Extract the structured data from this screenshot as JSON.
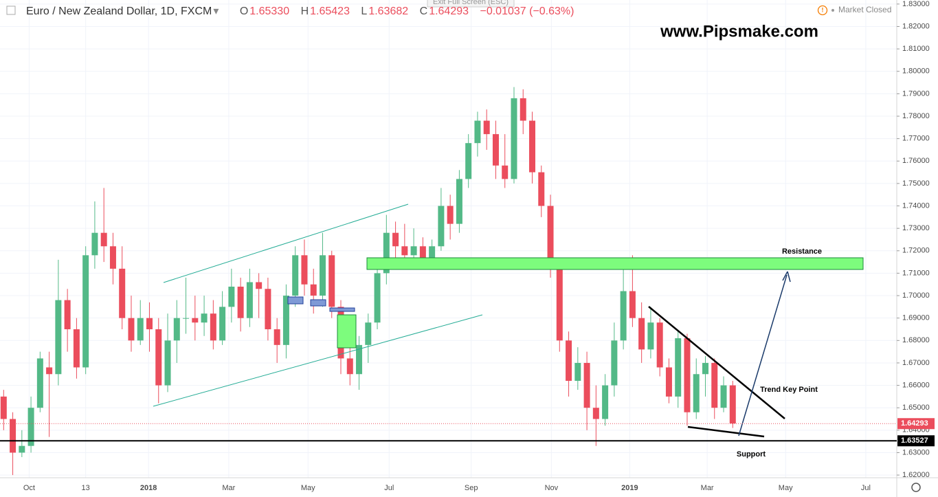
{
  "header": {
    "symbol": "Euro / New Zealand Dollar, 1D, FXCM",
    "ohlc": [
      {
        "key": "O",
        "value": "1.65330"
      },
      {
        "key": "H",
        "value": "1.65423"
      },
      {
        "key": "L",
        "value": "1.63682"
      },
      {
        "key": "C",
        "value": "1.64293"
      }
    ],
    "change": "−0.01037 (−0.63%)",
    "exit_fullscreen": "Exit Full Screen (ESC)",
    "status": "Market Closed"
  },
  "watermark": "www.Pipsmake.com",
  "chart_data": {
    "type": "candlestick",
    "x": [
      0,
      1,
      2,
      3,
      4,
      5,
      6,
      7,
      8,
      9,
      10,
      11,
      12,
      13,
      14,
      15,
      16,
      17,
      18,
      19,
      20,
      21,
      22,
      23,
      24,
      25,
      26,
      27,
      28,
      29,
      30,
      31,
      32,
      33,
      34,
      35,
      36,
      37,
      38,
      39,
      40,
      41,
      42,
      43,
      44,
      45,
      46,
      47,
      48,
      49,
      50,
      51,
      52,
      53,
      54,
      55,
      56,
      57,
      58,
      59,
      60,
      61,
      62,
      63,
      64,
      65,
      66,
      67,
      68,
      69,
      70,
      71,
      72,
      73,
      74,
      75,
      76,
      77,
      78,
      79,
      80
    ],
    "open": [
      1.655,
      1.645,
      1.63,
      1.633,
      1.65,
      1.668,
      1.665,
      1.698,
      1.685,
      1.668,
      1.718,
      1.728,
      1.722,
      1.712,
      1.69,
      1.68,
      1.69,
      1.685,
      1.66,
      1.68,
      1.69,
      1.69,
      1.688,
      1.692,
      1.68,
      1.695,
      1.704,
      1.69,
      1.706,
      1.703,
      1.685,
      1.678,
      1.7,
      1.718,
      1.705,
      1.7,
      1.718,
      1.695,
      1.672,
      1.665,
      1.678,
      1.688,
      1.71,
      1.728,
      1.722,
      1.718,
      1.722,
      1.716,
      1.722,
      1.74,
      1.732,
      1.752,
      1.768,
      1.778,
      1.772,
      1.758,
      1.752,
      1.788,
      1.778,
      1.755,
      1.74,
      1.712,
      1.68,
      1.662,
      1.67,
      1.65,
      1.645,
      1.66,
      1.68,
      1.702,
      1.69,
      1.676,
      1.688,
      1.668,
      1.655,
      1.681,
      1.648,
      1.665,
      1.67,
      1.65,
      1.66
    ],
    "high": [
      1.658,
      1.648,
      1.64,
      1.655,
      1.675,
      1.675,
      1.716,
      1.703,
      1.69,
      1.722,
      1.742,
      1.748,
      1.728,
      1.722,
      1.7,
      1.698,
      1.697,
      1.69,
      1.692,
      1.698,
      1.708,
      1.7,
      1.7,
      1.698,
      1.702,
      1.712,
      1.708,
      1.712,
      1.71,
      1.708,
      1.69,
      1.705,
      1.722,
      1.725,
      1.712,
      1.728,
      1.72,
      1.698,
      1.678,
      1.682,
      1.692,
      1.712,
      1.736,
      1.733,
      1.732,
      1.73,
      1.726,
      1.725,
      1.748,
      1.745,
      1.756,
      1.772,
      1.782,
      1.783,
      1.778,
      1.772,
      1.793,
      1.792,
      1.782,
      1.758,
      1.745,
      1.714,
      1.684,
      1.677,
      1.675,
      1.66,
      1.665,
      1.688,
      1.712,
      1.718,
      1.697,
      1.695,
      1.69,
      1.672,
      1.684,
      1.683,
      1.672,
      1.673,
      1.672,
      1.664,
      1.662
    ],
    "low": [
      1.64,
      1.62,
      1.628,
      1.63,
      1.648,
      1.637,
      1.66,
      1.675,
      1.663,
      1.665,
      1.712,
      1.715,
      1.705,
      1.685,
      1.675,
      1.678,
      1.675,
      1.652,
      1.657,
      1.67,
      1.683,
      1.68,
      1.682,
      1.676,
      1.678,
      1.688,
      1.684,
      1.686,
      1.69,
      1.68,
      1.67,
      1.672,
      1.695,
      1.7,
      1.692,
      1.695,
      1.69,
      1.665,
      1.66,
      1.658,
      1.67,
      1.685,
      1.705,
      1.714,
      1.712,
      1.713,
      1.713,
      1.713,
      1.72,
      1.725,
      1.728,
      1.748,
      1.762,
      1.765,
      1.752,
      1.748,
      1.75,
      1.772,
      1.75,
      1.735,
      1.708,
      1.675,
      1.655,
      1.658,
      1.64,
      1.633,
      1.642,
      1.655,
      1.676,
      1.686,
      1.67,
      1.672,
      1.664,
      1.652,
      1.65,
      1.642,
      1.645,
      1.655,
      1.645,
      1.648,
      1.641
    ],
    "close": [
      1.645,
      1.63,
      1.633,
      1.65,
      1.672,
      1.665,
      1.698,
      1.685,
      1.668,
      1.718,
      1.728,
      1.722,
      1.712,
      1.69,
      1.68,
      1.69,
      1.685,
      1.66,
      1.68,
      1.69,
      1.69,
      1.688,
      1.692,
      1.68,
      1.695,
      1.704,
      1.69,
      1.706,
      1.703,
      1.685,
      1.678,
      1.7,
      1.718,
      1.705,
      1.7,
      1.718,
      1.695,
      1.672,
      1.665,
      1.678,
      1.688,
      1.71,
      1.728,
      1.722,
      1.718,
      1.722,
      1.716,
      1.722,
      1.74,
      1.732,
      1.752,
      1.768,
      1.778,
      1.772,
      1.758,
      1.752,
      1.788,
      1.778,
      1.755,
      1.74,
      1.712,
      1.68,
      1.662,
      1.67,
      1.65,
      1.645,
      1.66,
      1.68,
      1.702,
      1.69,
      1.676,
      1.688,
      1.668,
      1.655,
      1.681,
      1.648,
      1.665,
      1.67,
      1.65,
      1.66,
      1.643
    ],
    "up_color": "#53b987",
    "down_color": "#eb4d5c",
    "xlim": [
      -0.4,
      98
    ],
    "xticks": [
      {
        "value": 2.8,
        "label": "Oct"
      },
      {
        "value": 9,
        "label": "13"
      },
      {
        "value": 15.9,
        "label": "2018"
      },
      {
        "value": 24.7,
        "label": "Mar"
      },
      {
        "value": 33.4,
        "label": "May"
      },
      {
        "value": 42.3,
        "label": "Jul"
      },
      {
        "value": 51.3,
        "label": "Sep"
      },
      {
        "value": 60.1,
        "label": "Nov"
      },
      {
        "value": 68.7,
        "label": "2019"
      },
      {
        "value": 77.2,
        "label": "Mar"
      },
      {
        "value": 85.8,
        "label": "May"
      },
      {
        "value": 94.6,
        "label": "Jul"
      }
    ],
    "ylim": [
      1.6188,
      1.8318
    ],
    "yticks": [
      {
        "value": 1.62,
        "label": "1.62000"
      },
      {
        "value": 1.63,
        "label": "1.63000"
      },
      {
        "value": 1.64,
        "label": "1.64000"
      },
      {
        "value": 1.65,
        "label": "1.65000"
      },
      {
        "value": 1.66,
        "label": "1.66000"
      },
      {
        "value": 1.67,
        "label": "1.67000"
      },
      {
        "value": 1.68,
        "label": "1.68000"
      },
      {
        "value": 1.69,
        "label": "1.69000"
      },
      {
        "value": 1.7,
        "label": "1.70000"
      },
      {
        "value": 1.71,
        "label": "1.71000"
      },
      {
        "value": 1.72,
        "label": "1.72000"
      },
      {
        "value": 1.73,
        "label": "1.73000"
      },
      {
        "value": 1.74,
        "label": "1.74000"
      },
      {
        "value": 1.75,
        "label": "1.75000"
      },
      {
        "value": 1.76,
        "label": "1.76000"
      },
      {
        "value": 1.77,
        "label": "1.77000"
      },
      {
        "value": 1.78,
        "label": "1.78000"
      },
      {
        "value": 1.79,
        "label": "1.79000"
      },
      {
        "value": 1.8,
        "label": "1.80000"
      },
      {
        "value": 1.81,
        "label": "1.81000"
      },
      {
        "value": 1.82,
        "label": "1.82000"
      },
      {
        "value": 1.83,
        "label": "1.83000"
      }
    ],
    "grid": true,
    "price_labels": [
      {
        "value": 1.64293,
        "label": "1.64293",
        "color": "#eb4d5c"
      },
      {
        "value": 1.63527,
        "label": "1.63527",
        "color": "#000000"
      }
    ],
    "annotations": [
      "Resistance",
      "Trend Key Point",
      "Support"
    ]
  }
}
